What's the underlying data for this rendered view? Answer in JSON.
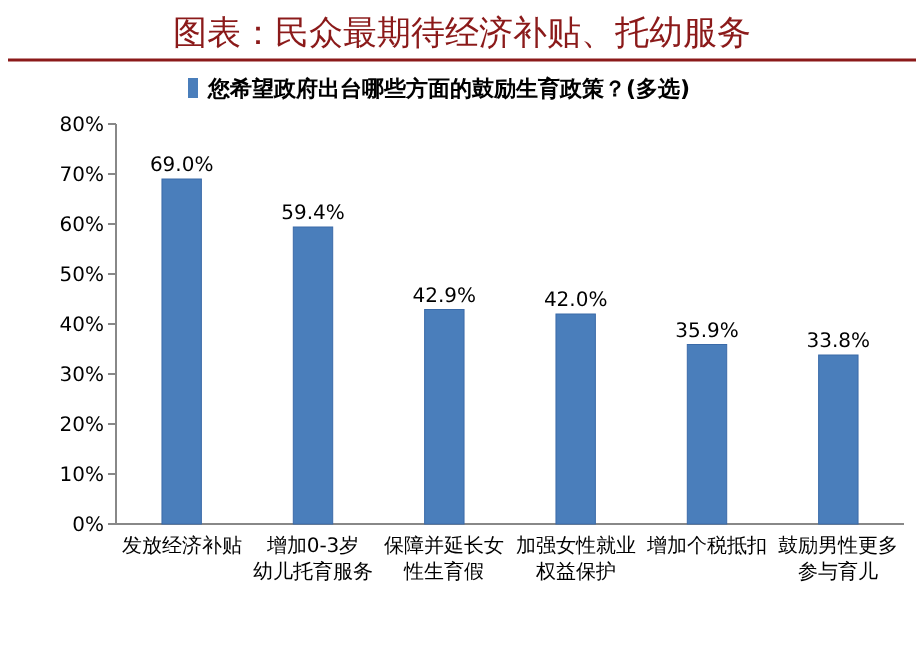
{
  "chart_data": {
    "type": "bar",
    "title": "图表：民众最期待经济补贴、托幼服务",
    "categories": [
      "发放经济补贴",
      "增加0-3岁幼儿托育服务",
      "保障并延长女性生育假",
      "加强女性就业权益保护",
      "增加个税抵扣",
      "鼓励男性更多参与育儿"
    ],
    "series": [
      {
        "name": "您希望政府出台哪些方面的鼓励生育政策？(多选)",
        "color": "#4a7ebb",
        "values": [
          69.0,
          59.4,
          42.9,
          42.0,
          35.9,
          33.8
        ],
        "value_labels": [
          "69.0%",
          "59.4%",
          "42.9%",
          "42.0%",
          "35.9%",
          "33.8%"
        ]
      }
    ],
    "ylim": [
      0,
      80
    ],
    "yticks": [
      {
        "value": 0,
        "label": "0%"
      },
      {
        "value": 10,
        "label": "10%"
      },
      {
        "value": 20,
        "label": "20%"
      },
      {
        "value": 30,
        "label": "30%"
      },
      {
        "value": 40,
        "label": "40%"
      },
      {
        "value": 50,
        "label": "50%"
      },
      {
        "value": 60,
        "label": "60%"
      },
      {
        "value": 70,
        "label": "70%"
      },
      {
        "value": 80,
        "label": "80%"
      }
    ],
    "legend": "top",
    "grid": false
  }
}
